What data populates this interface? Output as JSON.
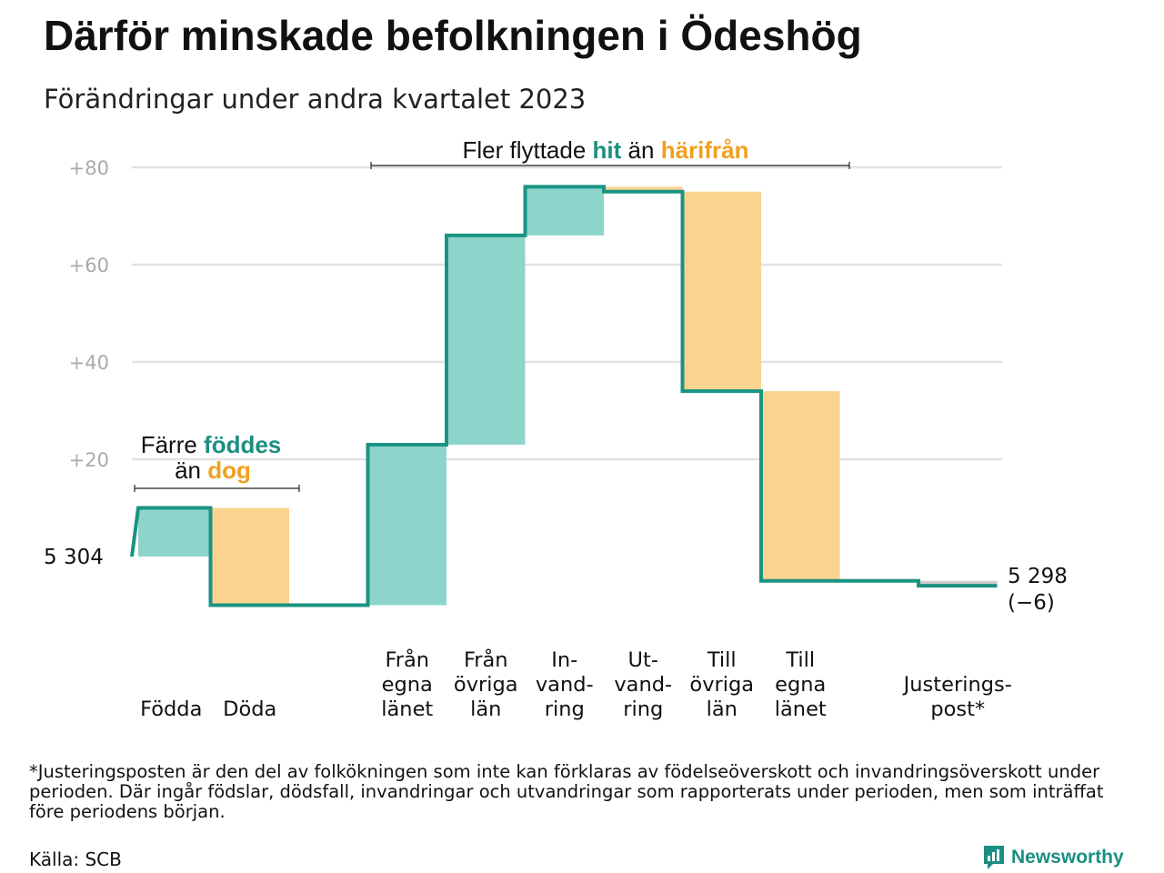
{
  "title": "Därför minskade befolkningen i Ödeshög",
  "subtitle": "Förändringar under andra kvartalet 2023",
  "chart_data": {
    "type": "waterfall",
    "start_label": "5  304",
    "end_label": "5 298",
    "end_change": "(−6)",
    "ylim": [
      -10,
      82
    ],
    "yticks": [
      {
        "value": 20,
        "label": "+20"
      },
      {
        "value": 40,
        "label": "+40"
      },
      {
        "value": 60,
        "label": "+60"
      },
      {
        "value": 80,
        "label": "+80"
      }
    ],
    "grid": true,
    "steps": [
      {
        "key": "fodda",
        "lines": [
          "Födda"
        ],
        "value": 10,
        "kind": "in"
      },
      {
        "key": "doda",
        "lines": [
          "Döda"
        ],
        "value": -20,
        "kind": "out"
      },
      {
        "key": "spacer",
        "lines": [],
        "value": 0,
        "kind": "none"
      },
      {
        "key": "fran-egna-lanet",
        "lines": [
          "Från",
          "egna",
          "länet"
        ],
        "value": 33,
        "kind": "in"
      },
      {
        "key": "fran-ovriga-lan",
        "lines": [
          "Från",
          "övriga",
          "län"
        ],
        "value": 43,
        "kind": "in"
      },
      {
        "key": "invandring",
        "lines": [
          "In-",
          "vand-",
          "ring"
        ],
        "value": 10,
        "kind": "in"
      },
      {
        "key": "utvandring",
        "lines": [
          "Ut-",
          "vand-",
          "ring"
        ],
        "value": -1,
        "kind": "out"
      },
      {
        "key": "till-ovriga-lan",
        "lines": [
          "Till",
          "övriga",
          "län"
        ],
        "value": -41,
        "kind": "out"
      },
      {
        "key": "till-egna-lanet",
        "lines": [
          "Till",
          "egna",
          "länet"
        ],
        "value": -39,
        "kind": "out"
      },
      {
        "key": "spacer2",
        "lines": [],
        "value": 0,
        "kind": "none"
      },
      {
        "key": "justeringspost",
        "lines": [
          "Justerings-",
          "post*"
        ],
        "value": -1,
        "kind": "adjust"
      }
    ],
    "annotations": {
      "birth": {
        "line1": "Färre",
        "word1": "föddes",
        "line2_pre": "än",
        "word2": "dog"
      },
      "migration": {
        "pre": "Fler flyttade",
        "word1": "hit",
        "mid": "än",
        "word2": "härifrån"
      }
    }
  },
  "colors": {
    "increase": "#8dd4cb",
    "decrease": "#fad48f",
    "line": "#1b9383",
    "teal_text": "#1b8f80",
    "orange_text": "#f0a020",
    "grid": "#e2e2e2",
    "tick": "#aaaaaa",
    "adjust": "#cccccc"
  },
  "footnote": "*Justeringsposten är den del av folkökningen som inte kan förklaras av födelseöverskott och invandringsöverskott under perioden. Där ingår födslar, dödsfall, invandringar och utvandringar som rapporterats under perioden, men som inträffat före periodens början.",
  "source": "Källa: SCB",
  "brand": "Newsworthy"
}
